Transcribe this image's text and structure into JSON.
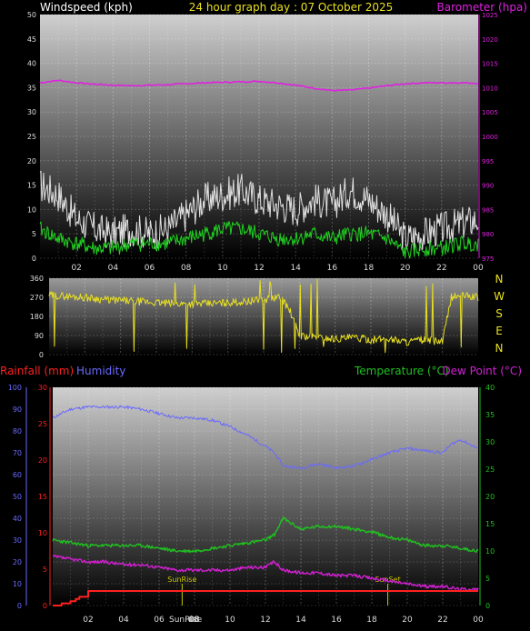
{
  "header": {
    "wind_title": "Windspeed (kph)",
    "date_title": "24 hour graph day : 07 October 2025",
    "baro_title": "Barometer (hpa)"
  },
  "colors": {
    "barometer": "#e020e0",
    "wind_avg": "#20d020",
    "wind_gust": "#e0e0e0",
    "wind_dir": "#e8e020",
    "rainfall": "#ff2020",
    "humidity": "#6a6aff",
    "temperature": "#20c020",
    "dewpoint": "#d020d0",
    "sun_marker": "#c8c800"
  },
  "chart_data": [
    {
      "type": "line",
      "title": "Windspeed (kph)",
      "x_ticks": [
        "02",
        "04",
        "06",
        "08",
        "10",
        "12",
        "14",
        "16",
        "18",
        "20",
        "22",
        "00"
      ],
      "x_range_hours": [
        0,
        24
      ],
      "ylim_left": [
        0,
        50
      ],
      "yticks_left": [
        "0",
        "5",
        "10",
        "15",
        "20",
        "25",
        "30",
        "35",
        "40",
        "45",
        "50"
      ],
      "ylim_right": [
        975,
        1025
      ],
      "yticks_right": [
        "975",
        "980",
        "985",
        "990",
        "995",
        "1000",
        "1005",
        "1010",
        "1015",
        "1020",
        "1025"
      ],
      "right_label": "Barometer (hpa)",
      "grid": true,
      "series": [
        {
          "name": "Barometer (hpa)",
          "axis": "right",
          "x": [
            0,
            1,
            2,
            3,
            4,
            5,
            6,
            7,
            8,
            9,
            10,
            11,
            12,
            13,
            14,
            15,
            16,
            17,
            18,
            19,
            20,
            21,
            22,
            23,
            24
          ],
          "values": [
            1011,
            1011.5,
            1011,
            1010.7,
            1010.5,
            1010.4,
            1010.5,
            1010.6,
            1010.8,
            1011,
            1011.1,
            1011.2,
            1011.3,
            1011,
            1010.5,
            1009.9,
            1009.4,
            1009.5,
            1009.9,
            1010.4,
            1010.8,
            1011,
            1011,
            1011,
            1010.9
          ]
        },
        {
          "name": "Windspeed gust (kph)",
          "axis": "left",
          "x": [
            0,
            1,
            2,
            3,
            4,
            5,
            6,
            7,
            8,
            9,
            10,
            11,
            12,
            13,
            14,
            15,
            16,
            17,
            18,
            19,
            20,
            21,
            22,
            23,
            24
          ],
          "values": [
            15,
            13,
            8,
            6,
            5,
            6,
            5,
            6,
            9,
            12,
            13,
            14,
            12,
            11,
            10,
            12,
            11,
            14,
            12,
            9,
            4,
            5,
            6,
            7,
            8
          ]
        },
        {
          "name": "Windspeed (kph)",
          "axis": "left",
          "x": [
            0,
            1,
            2,
            3,
            4,
            5,
            6,
            7,
            8,
            9,
            10,
            11,
            12,
            13,
            14,
            15,
            16,
            17,
            18,
            19,
            20,
            21,
            22,
            23,
            24
          ],
          "values": [
            6,
            4,
            3,
            2,
            2,
            3,
            3,
            3,
            4,
            5,
            6,
            6,
            5,
            4,
            4,
            5,
            4,
            5,
            5,
            4,
            1,
            2,
            2,
            3,
            3
          ]
        }
      ]
    },
    {
      "type": "line",
      "title": "Wind direction",
      "x_range_hours": [
        0,
        24
      ],
      "ylim": [
        0,
        360
      ],
      "yticks": [
        "0",
        "90",
        "180",
        "270",
        "360"
      ],
      "right_labels": [
        "N",
        "W",
        "S",
        "E",
        "N"
      ],
      "series": [
        {
          "name": "Wind direction",
          "axis": "left",
          "x": [
            0,
            1,
            2,
            3,
            4,
            5,
            6,
            7,
            8,
            9,
            10,
            11,
            12,
            13,
            13.5,
            14,
            15,
            16,
            17,
            18,
            19,
            20,
            21,
            22,
            22.5,
            23,
            24
          ],
          "values": [
            280,
            275,
            270,
            260,
            255,
            250,
            245,
            240,
            240,
            240,
            245,
            250,
            260,
            270,
            200,
            90,
            80,
            75,
            80,
            70,
            75,
            60,
            70,
            60,
            270,
            280,
            270
          ]
        }
      ]
    },
    {
      "type": "line",
      "title": "",
      "x_ticks": [
        "02",
        "04",
        "06",
        "08",
        "10",
        "12",
        "14",
        "16",
        "18",
        "20",
        "22",
        "00"
      ],
      "x_range_hours": [
        0,
        24
      ],
      "axes": {
        "humidity": {
          "range": [
            0,
            100
          ],
          "ticks": [
            "0",
            "10",
            "20",
            "30",
            "40",
            "50",
            "60",
            "70",
            "80",
            "90",
            "100"
          ]
        },
        "rainfall": {
          "range": [
            0,
            30
          ],
          "ticks": [
            "0",
            "5",
            "10",
            "15",
            "20",
            "25",
            "30"
          ]
        },
        "temperature": {
          "range": [
            0,
            40
          ],
          "ticks": [
            "0",
            "5",
            "10",
            "15",
            "20",
            "25",
            "30",
            "35",
            "40"
          ]
        }
      },
      "legend_labels": {
        "rainfall": "Rainfall (mm)",
        "humidity": "Humidity",
        "temperature": "Temperature (°C)",
        "dewpoint": "Dew Point (°C)"
      },
      "annotations": [
        {
          "label": "SunRise",
          "hour": 7.3
        },
        {
          "label": "SunSet",
          "hour": 18.9
        }
      ],
      "bottom_labels": [
        "SunRise",
        "08"
      ],
      "series": [
        {
          "name": "Humidity",
          "axis": "humidity",
          "x": [
            0,
            1,
            2,
            3,
            4,
            5,
            6,
            7,
            8,
            9,
            10,
            11,
            12,
            12.5,
            13,
            14,
            15,
            16,
            17,
            18,
            19,
            20,
            21,
            22,
            22.5,
            23,
            24
          ],
          "values": [
            86,
            90,
            91,
            91,
            91,
            90,
            88,
            86,
            86,
            85,
            82,
            78,
            73,
            70,
            64,
            63,
            65,
            63,
            64,
            67,
            70,
            72,
            71,
            70,
            74,
            76,
            72
          ]
        },
        {
          "name": "Temperature (°C)",
          "axis": "temperature",
          "x": [
            0,
            1,
            2,
            3,
            4,
            5,
            6,
            7,
            8,
            9,
            10,
            11,
            12,
            12.5,
            13,
            14,
            15,
            16,
            17,
            18,
            19,
            20,
            21,
            22,
            23,
            24
          ],
          "values": [
            12,
            11.5,
            11,
            11,
            11,
            11,
            10.5,
            10,
            10,
            10.5,
            11,
            11.5,
            12,
            13,
            16,
            14,
            14.5,
            14.5,
            14,
            13.5,
            12.5,
            12,
            11,
            11,
            10.5,
            10
          ]
        },
        {
          "name": "Dew Point (°C)",
          "axis": "temperature",
          "x": [
            0,
            1,
            2,
            3,
            4,
            5,
            6,
            7,
            8,
            9,
            10,
            11,
            12,
            12.5,
            13,
            14,
            15,
            16,
            17,
            18,
            19,
            20,
            21,
            22,
            23,
            24
          ],
          "values": [
            9,
            8.5,
            8,
            8,
            7.5,
            7.5,
            7,
            6.5,
            6.5,
            6.5,
            6.5,
            7,
            7,
            8,
            6.5,
            6,
            6,
            5.5,
            5.5,
            5,
            4.5,
            4,
            3.5,
            3.5,
            3,
            3
          ]
        },
        {
          "name": "Rainfall (mm)",
          "axis": "rainfall",
          "x": [
            0,
            0.5,
            1,
            1.3,
            1.5,
            2,
            24
          ],
          "values": [
            0,
            0.3,
            0.6,
            0.9,
            1.2,
            2.0,
            2.0
          ]
        }
      ]
    }
  ]
}
